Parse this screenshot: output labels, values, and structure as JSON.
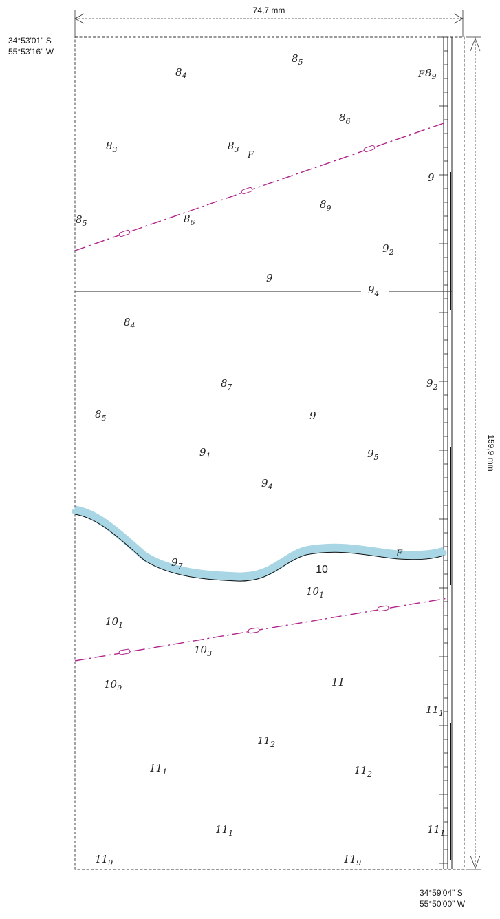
{
  "dimensions": {
    "width_label": "74,7 mm",
    "height_label": "159,9 mm"
  },
  "corners": {
    "top_left_lat": "34°53'01\" S",
    "top_left_lon": "55°53'16\" W",
    "bottom_right_lat": "34°59'04\" S",
    "bottom_right_lon": "55°50'00\" W"
  },
  "contour_label": "10",
  "bottom_marks": [
    "F",
    "F",
    "F"
  ],
  "soundings": [
    {
      "whole": "8",
      "frac": "4"
    },
    {
      "whole": "8",
      "frac": "5"
    },
    {
      "whole": "8",
      "frac": "9"
    },
    {
      "whole": "8",
      "frac": "6"
    },
    {
      "whole": "8",
      "frac": "3"
    },
    {
      "whole": "8",
      "frac": "3"
    },
    {
      "whole": "9",
      "frac": ""
    },
    {
      "whole": "8",
      "frac": "5"
    },
    {
      "whole": "8",
      "frac": "6"
    },
    {
      "whole": "8",
      "frac": "9"
    },
    {
      "whole": "9",
      "frac": "2"
    },
    {
      "whole": "9",
      "frac": ""
    },
    {
      "whole": "9",
      "frac": "4"
    },
    {
      "whole": "8",
      "frac": "4"
    },
    {
      "whole": "8",
      "frac": "7"
    },
    {
      "whole": "9",
      "frac": "2"
    },
    {
      "whole": "8",
      "frac": "5"
    },
    {
      "whole": "9",
      "frac": ""
    },
    {
      "whole": "9",
      "frac": "1"
    },
    {
      "whole": "9",
      "frac": "5"
    },
    {
      "whole": "9",
      "frac": "4"
    },
    {
      "whole": "9",
      "frac": "7"
    },
    {
      "whole": "10",
      "frac": "1"
    },
    {
      "whole": "10",
      "frac": "1"
    },
    {
      "whole": "10",
      "frac": "3"
    },
    {
      "whole": "10",
      "frac": "9"
    },
    {
      "whole": "11",
      "frac": ""
    },
    {
      "whole": "11",
      "frac": "1"
    },
    {
      "whole": "11",
      "frac": "2"
    },
    {
      "whole": "11",
      "frac": "1"
    },
    {
      "whole": "11",
      "frac": "2"
    },
    {
      "whole": "11",
      "frac": "1"
    },
    {
      "whole": "11",
      "frac": "1"
    },
    {
      "whole": "11",
      "frac": "9"
    },
    {
      "whole": "11",
      "frac": "9"
    }
  ],
  "colors": {
    "cable": "#b0248c",
    "shoal": "#a9d6e5",
    "ink": "#1a1a1a"
  }
}
